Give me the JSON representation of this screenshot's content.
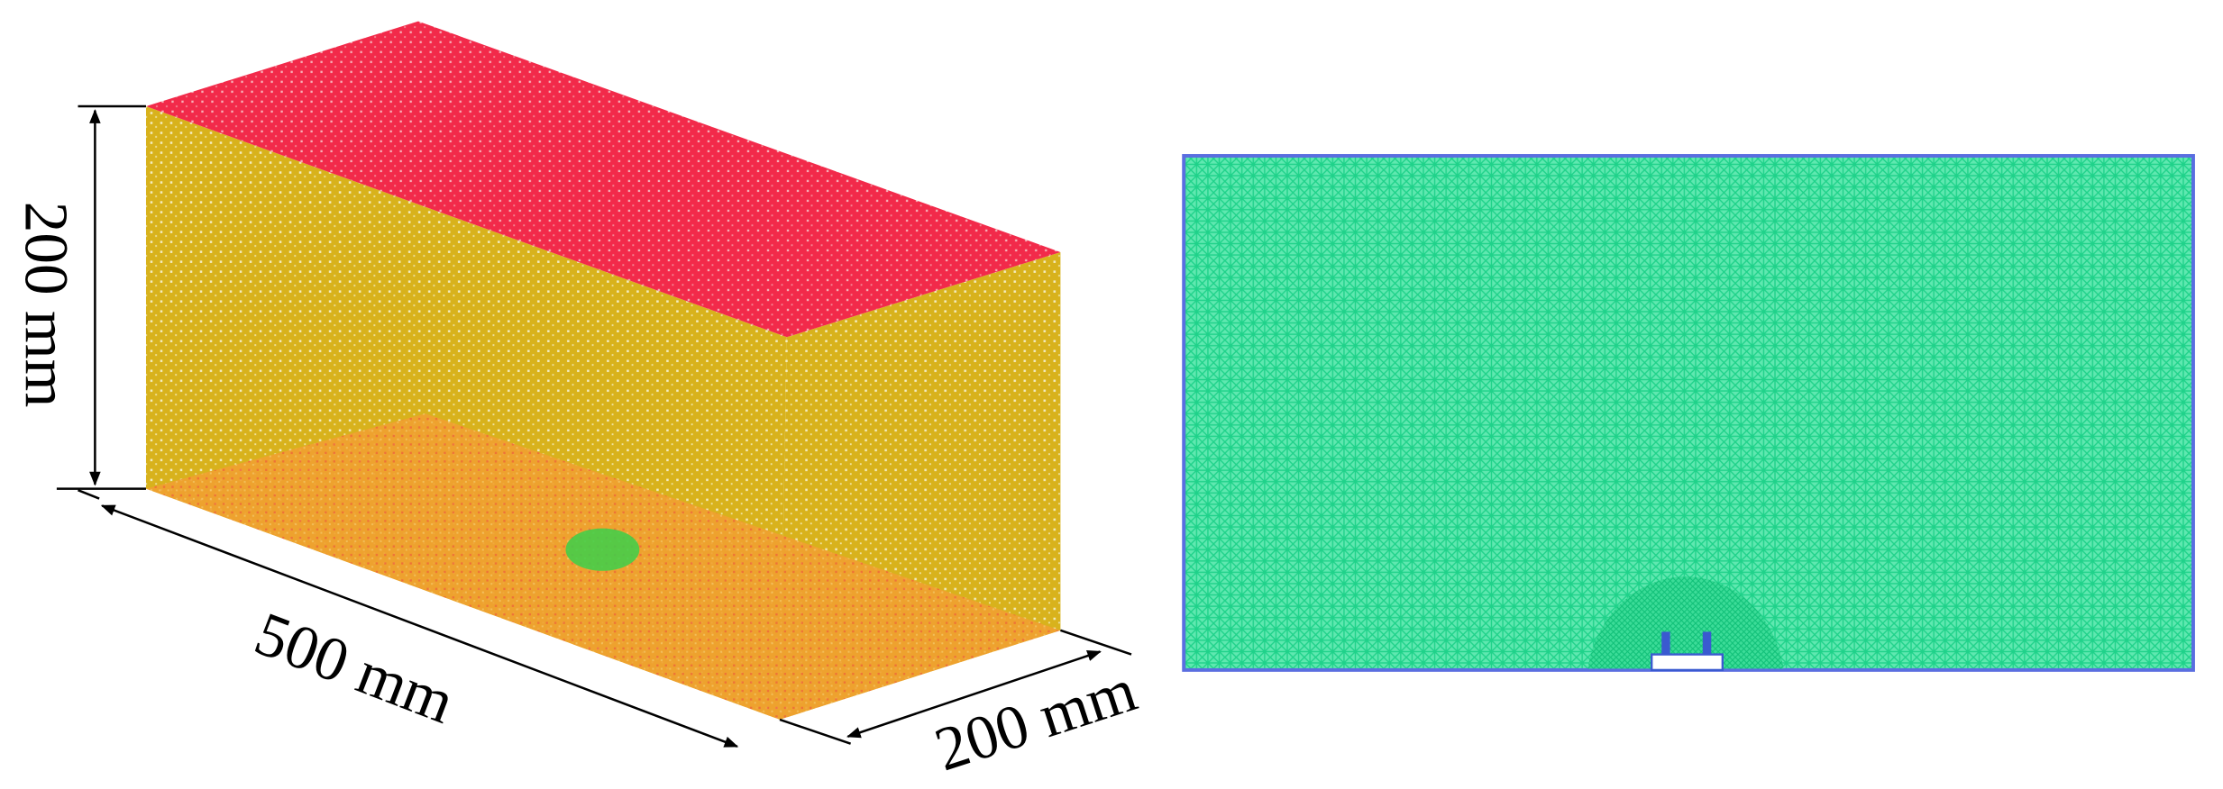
{
  "dimensions": {
    "height": "200 mm",
    "length": "500 mm",
    "width": "200 mm"
  }
}
